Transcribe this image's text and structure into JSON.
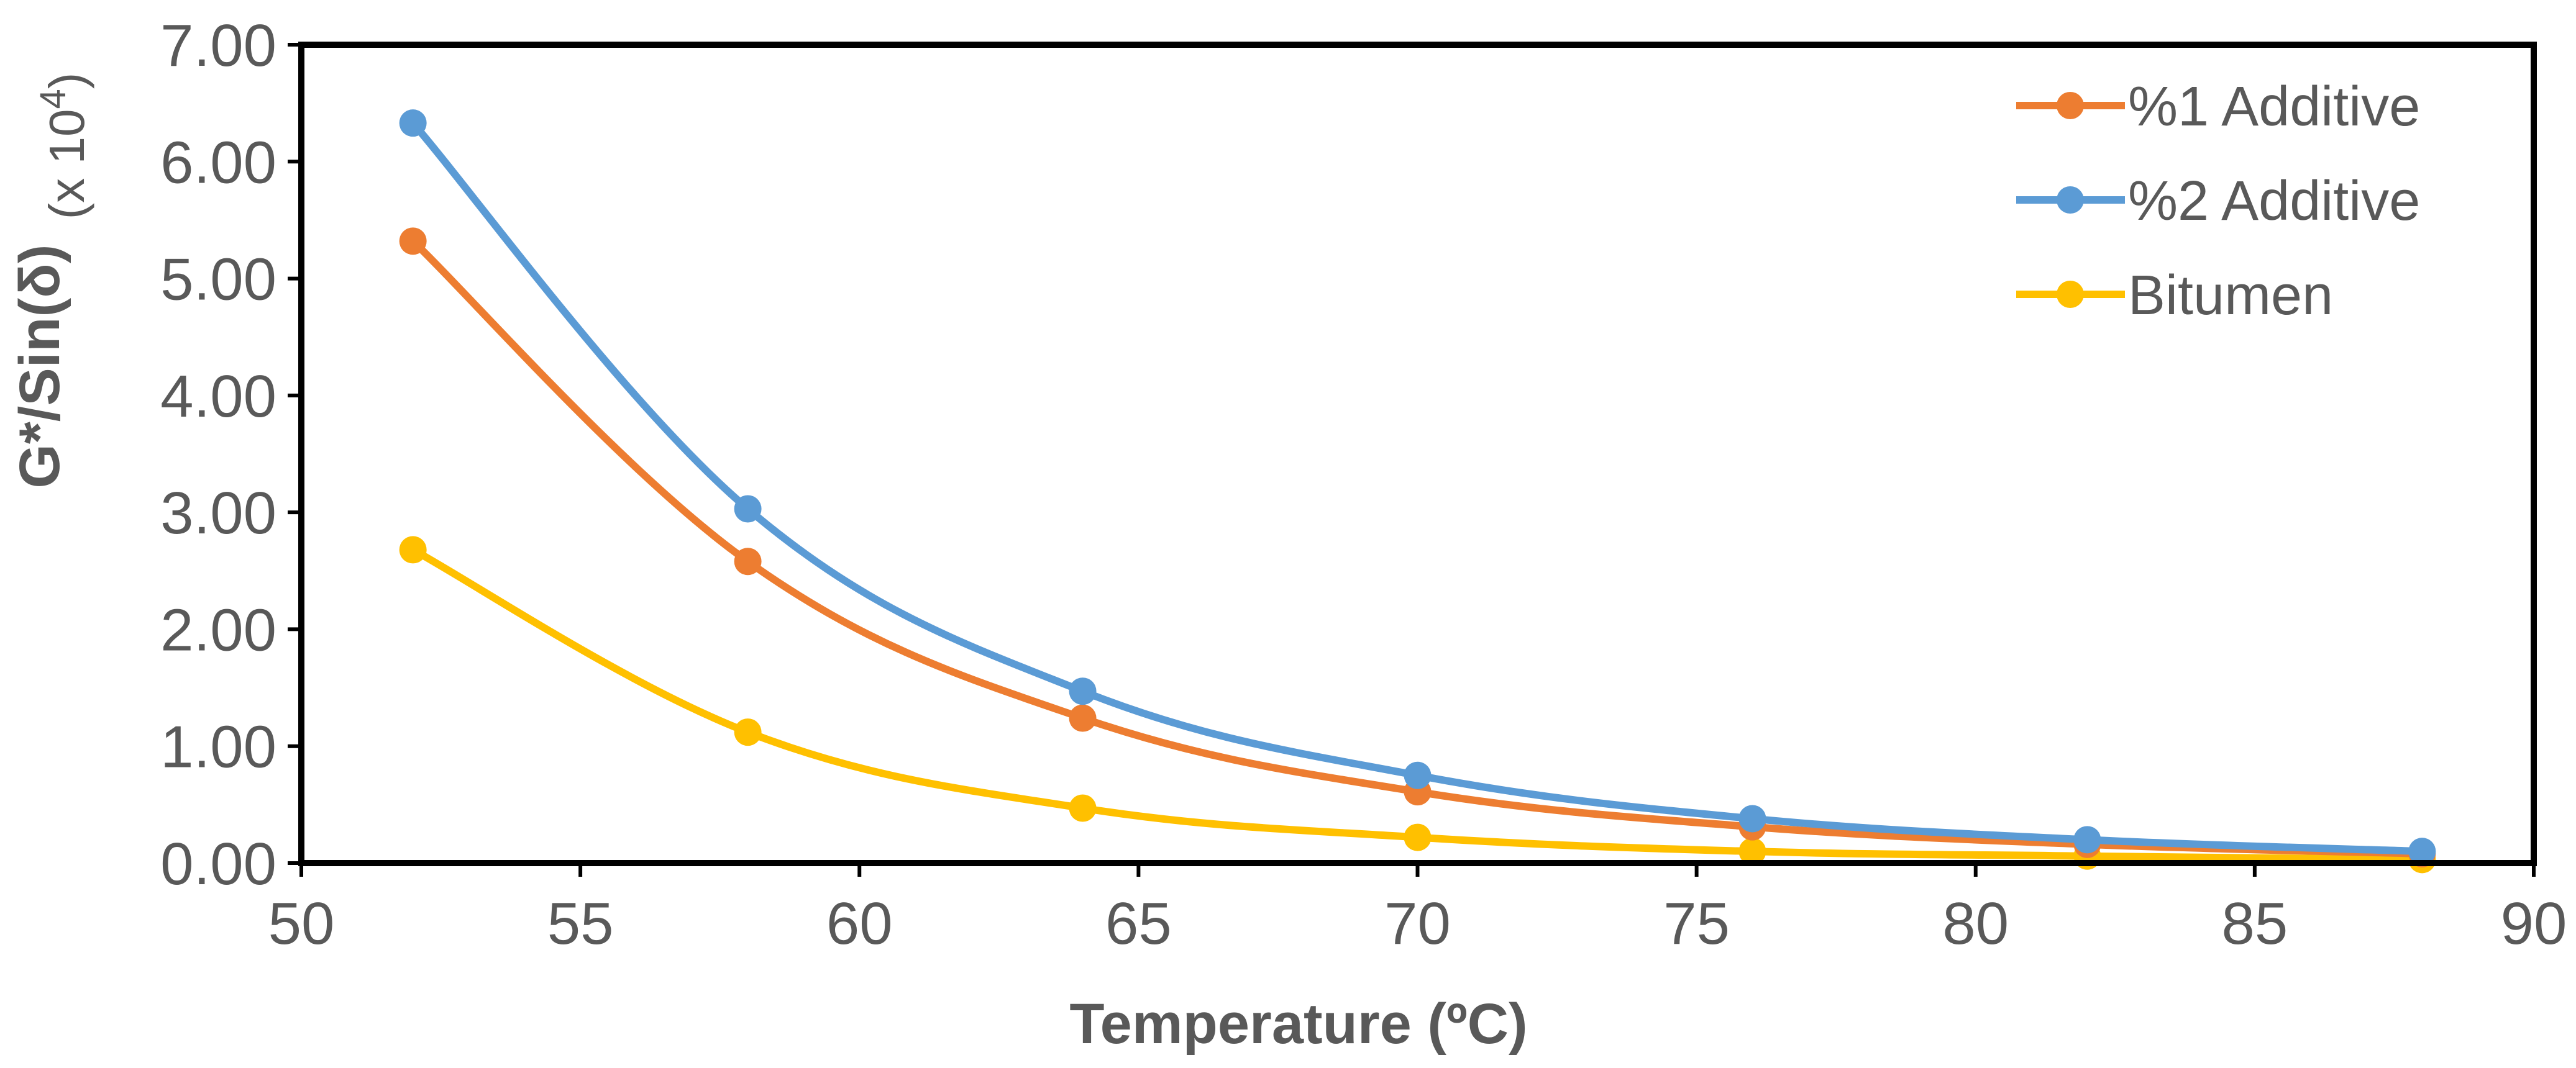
{
  "chart_data": {
    "type": "line",
    "title": "",
    "xlabel": "Temperature (ºC)",
    "ylabel": "G*/Sin(δ)",
    "ylabel_unit_prefix": "(x 10",
    "ylabel_unit_exp": "4",
    "ylabel_unit_suffix": ")",
    "xlim": [
      50,
      90
    ],
    "ylim": [
      0,
      7
    ],
    "x_ticks": [
      50,
      55,
      60,
      65,
      70,
      75,
      80,
      85,
      90
    ],
    "y_ticks": [
      "0.00",
      "1.00",
      "2.00",
      "3.00",
      "4.00",
      "5.00",
      "6.00",
      "7.00"
    ],
    "grid": false,
    "legend_position": "top-right",
    "x": [
      52,
      58,
      64,
      70,
      76,
      82,
      88
    ],
    "series": [
      {
        "name": "%1 Additive",
        "color": "#ED7D31",
        "values": [
          5.32,
          2.58,
          1.24,
          0.61,
          0.31,
          0.16,
          0.08
        ]
      },
      {
        "name": "%2 Additive",
        "color": "#5B9BD5",
        "values": [
          6.33,
          3.03,
          1.47,
          0.75,
          0.38,
          0.2,
          0.1
        ]
      },
      {
        "name": "Bitumen",
        "color": "#FFC000",
        "values": [
          2.68,
          1.12,
          0.47,
          0.22,
          0.1,
          0.06,
          0.03
        ]
      }
    ]
  }
}
